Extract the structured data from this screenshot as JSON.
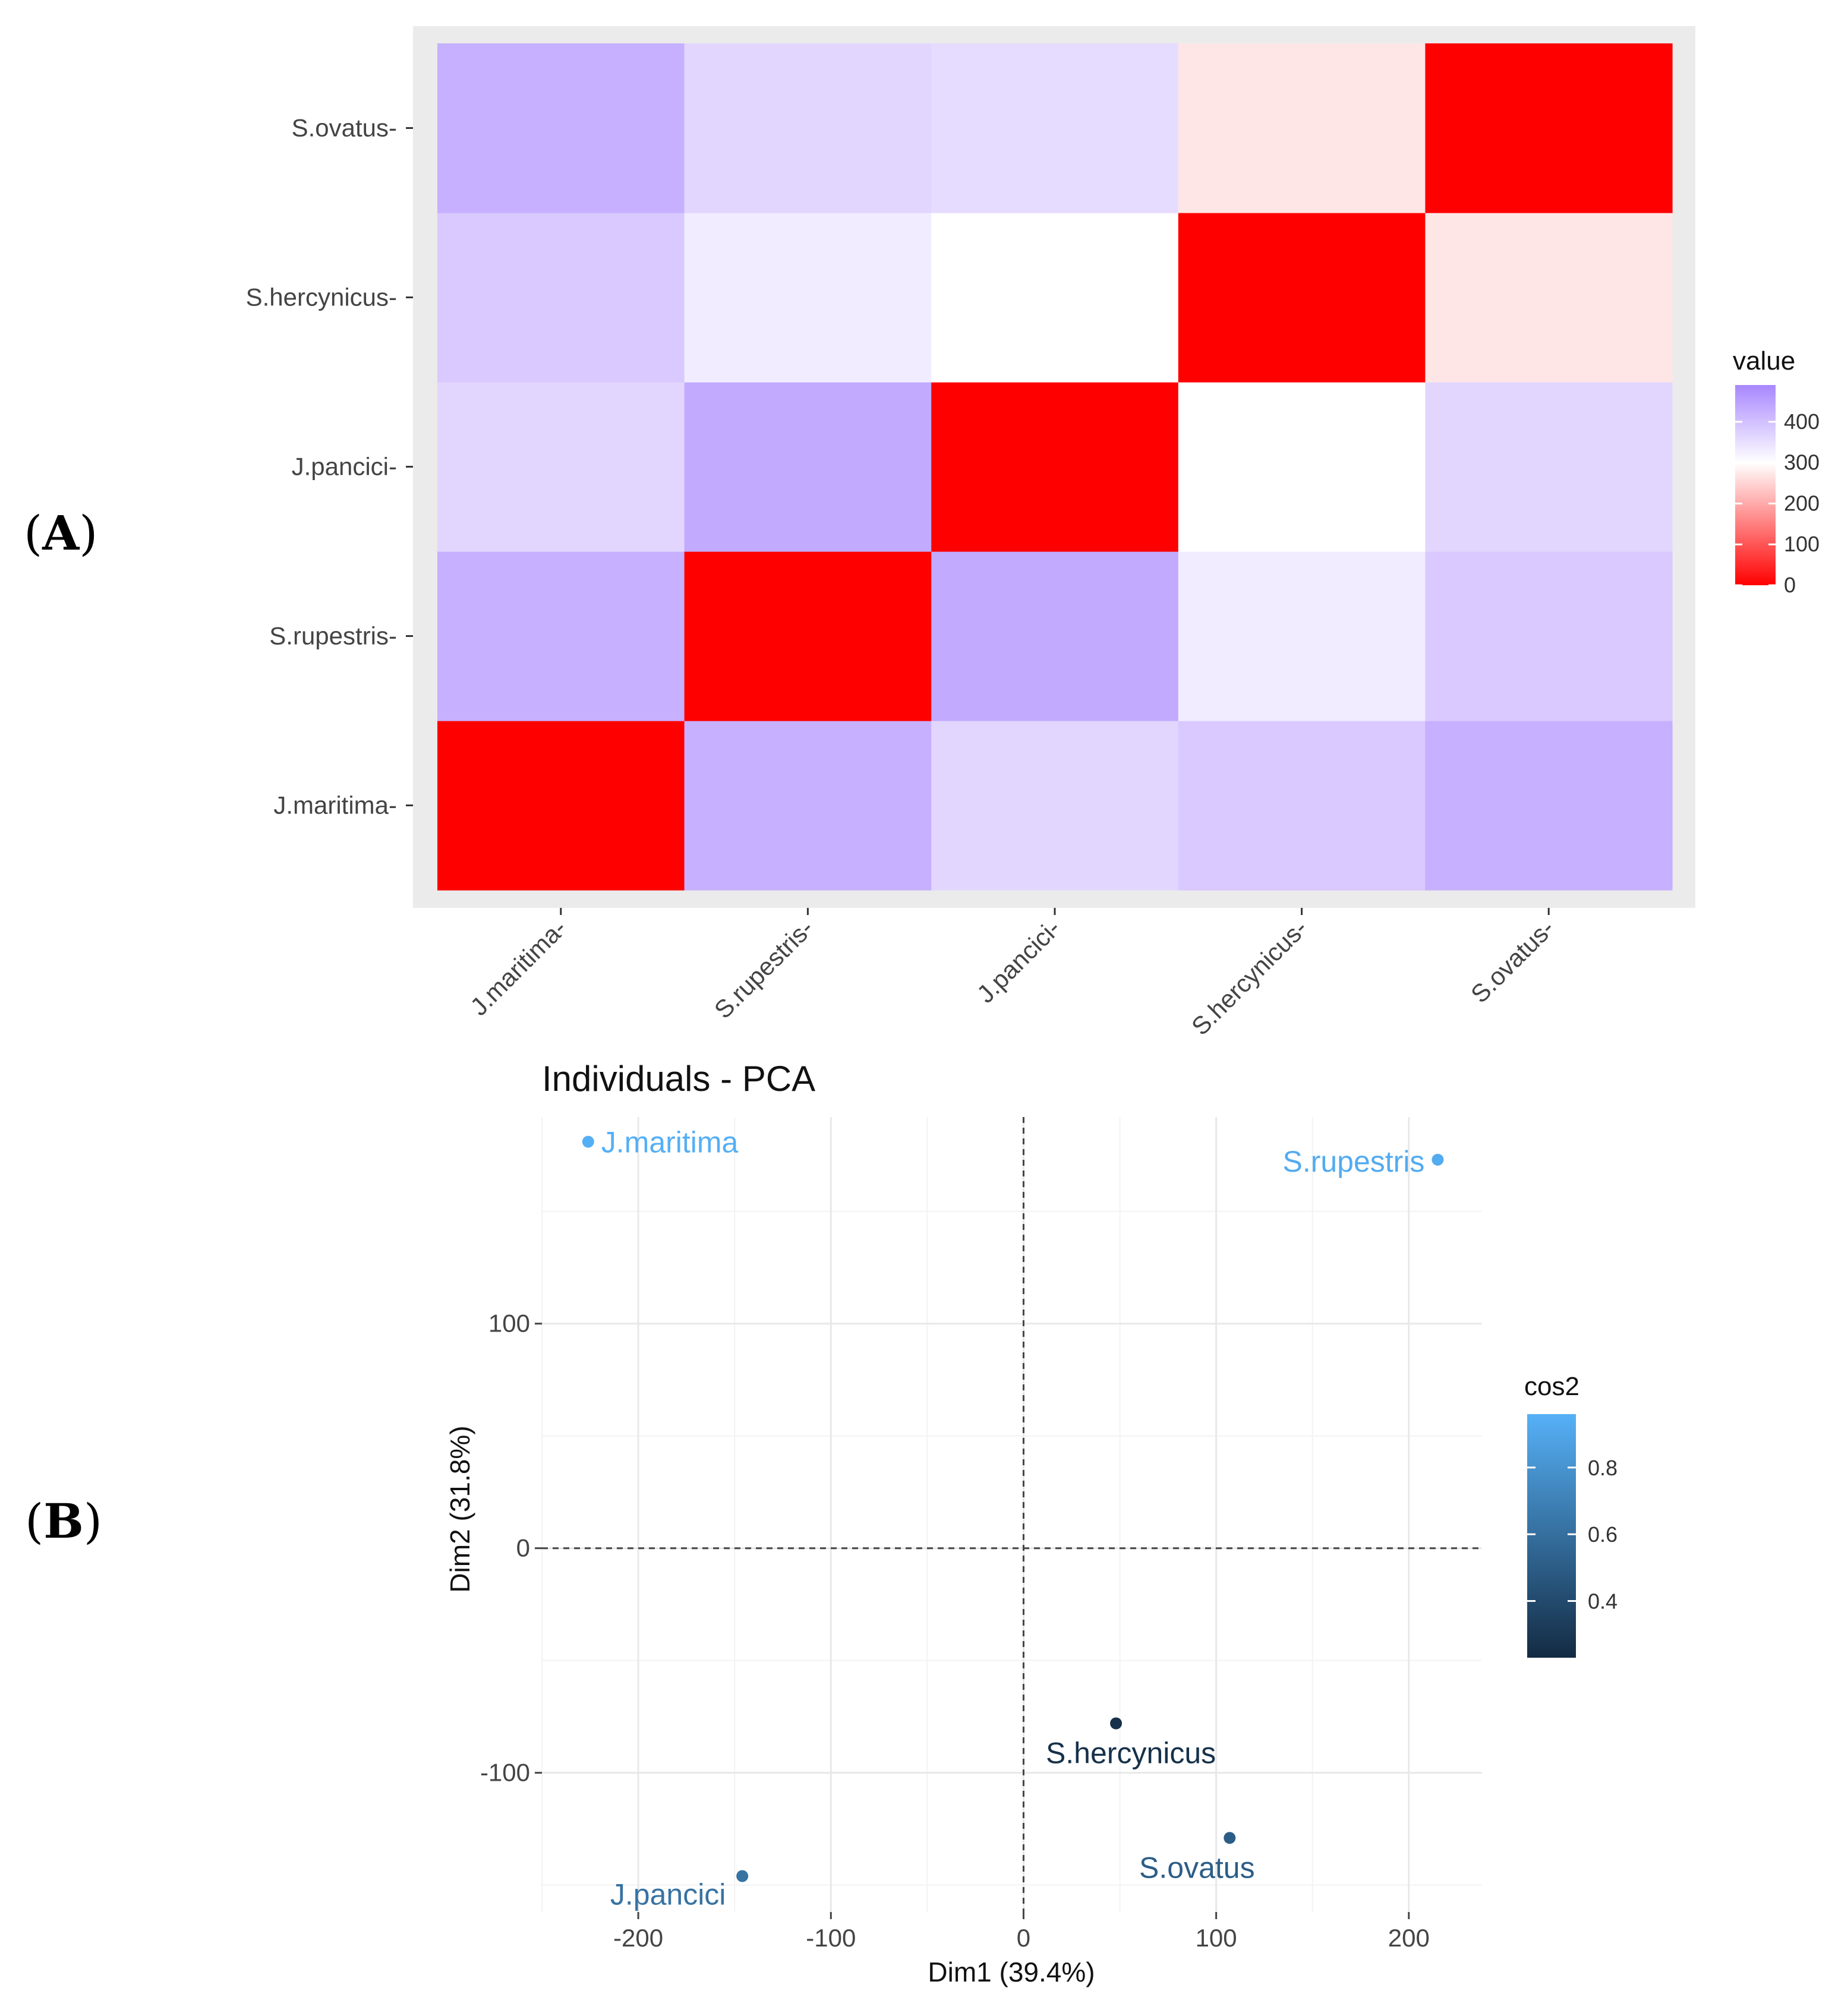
{
  "panels": {
    "a_label": "A",
    "b_label": "B"
  },
  "chart_data": [
    {
      "type": "heatmap",
      "title": "",
      "categories": [
        "J.maritima",
        "S.rupestris",
        "J.pancici",
        "S.hercynicus",
        "S.ovatus"
      ],
      "xlabel": "",
      "ylabel": "",
      "matrix": [
        [
          0,
          425,
          365,
          385,
          425
        ],
        [
          425,
          0,
          435,
          330,
          385
        ],
        [
          365,
          435,
          0,
          300,
          365
        ],
        [
          385,
          330,
          300,
          0,
          270
        ],
        [
          425,
          365,
          355,
          270,
          0
        ]
      ],
      "legend": {
        "title": "value",
        "ticks": [
          400,
          300,
          200,
          100,
          0
        ],
        "range": [
          0,
          490
        ],
        "low_color": "#ff0000",
        "mid_color": "#ffffff",
        "high_color": "#a987ff",
        "midpoint": 300
      }
    },
    {
      "type": "scatter",
      "title": "Individuals - PCA",
      "xlabel": "Dim1 (39.4%)",
      "ylabel": "Dim2 (31.8%)",
      "xlim": [
        -250,
        238
      ],
      "ylim": [
        -162,
        192
      ],
      "xticks": [
        -200,
        -100,
        0,
        100,
        200
      ],
      "yticks": [
        100,
        0,
        -100
      ],
      "points": [
        {
          "label": "J.maritima",
          "x": -226,
          "y": 181,
          "cos2": 0.95
        },
        {
          "label": "S.rupestris",
          "x": 215,
          "y": 173,
          "cos2": 0.93
        },
        {
          "label": "S.hercynicus",
          "x": 48,
          "y": -78,
          "cos2": 0.26
        },
        {
          "label": "S.ovatus",
          "x": 107,
          "y": -129,
          "cos2": 0.5
        },
        {
          "label": "J.pancici",
          "x": -146,
          "y": -146,
          "cos2": 0.62
        }
      ],
      "legend": {
        "title": "cos2",
        "ticks": [
          0.8,
          0.6,
          0.4
        ],
        "range": [
          0.23,
          0.96
        ],
        "low_color": "#132b43",
        "high_color": "#56b1f7"
      }
    }
  ]
}
